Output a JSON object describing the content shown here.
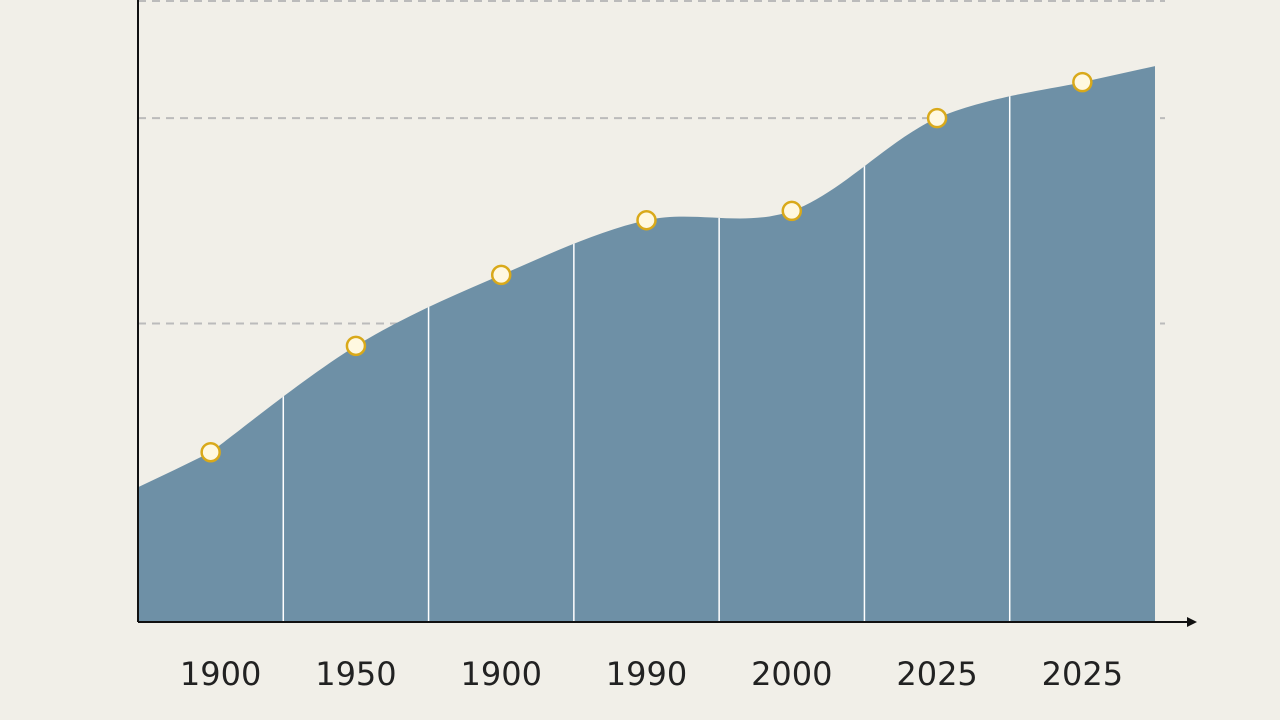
{
  "chart_data": {
    "type": "area",
    "categories": [
      "1900",
      "1950",
      "1900",
      "1990",
      "2000",
      "2025",
      "2025"
    ],
    "values": [
      27.3,
      44.4,
      55.8,
      64.6,
      66.1,
      81.0,
      86.8
    ],
    "color": "#6e90a6",
    "marker_color": "#d9a91a",
    "ylim": [
      0,
      100
    ],
    "yticks": [
      48,
      81,
      100
    ],
    "grid": true
  }
}
